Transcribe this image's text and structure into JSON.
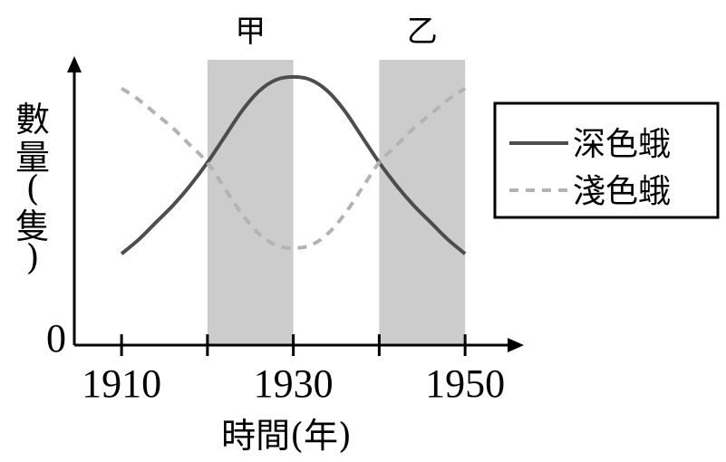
{
  "chart_data": {
    "type": "line",
    "xlabel": "時間(年)",
    "ylabel": "數量(隻)",
    "origin_label": "0",
    "x_ticks": [
      1910,
      1920,
      1930,
      1940,
      1950
    ],
    "x_tick_labels": [
      "1910",
      "",
      "1930",
      "",
      "1950"
    ],
    "xlim": [
      1904.5,
      1956
    ],
    "ylim": [
      0,
      10
    ],
    "shaded_regions": [
      {
        "label": "甲",
        "from": 1920,
        "to": 1930
      },
      {
        "label": "乙",
        "from": 1940,
        "to": 1950
      }
    ],
    "legend": {
      "position": "right"
    },
    "series": [
      {
        "name": "深色蛾",
        "style": "solid",
        "color": "#4d4d4d",
        "x": [
          1910,
          1912,
          1914,
          1916,
          1918,
          1920,
          1922,
          1924,
          1926,
          1928,
          1930,
          1932,
          1934,
          1936,
          1938,
          1940,
          1942,
          1944,
          1946,
          1948,
          1950
        ],
        "y": [
          3.2,
          3.7,
          4.3,
          4.9,
          5.6,
          6.4,
          7.3,
          8.2,
          8.9,
          9.3,
          9.4,
          9.3,
          8.9,
          8.2,
          7.3,
          6.4,
          5.6,
          4.9,
          4.3,
          3.7,
          3.2
        ]
      },
      {
        "name": "淺色蛾",
        "style": "dashed",
        "color": "#b3b3b3",
        "x": [
          1910,
          1912,
          1914,
          1916,
          1918,
          1920,
          1922,
          1924,
          1926,
          1928,
          1930,
          1932,
          1934,
          1936,
          1938,
          1940,
          1942,
          1944,
          1946,
          1948,
          1950
        ],
        "y": [
          9.0,
          8.6,
          8.1,
          7.6,
          7.0,
          6.4,
          5.5,
          4.6,
          3.9,
          3.5,
          3.4,
          3.5,
          3.9,
          4.6,
          5.5,
          6.4,
          7.0,
          7.6,
          8.1,
          8.6,
          9.0
        ]
      }
    ]
  }
}
